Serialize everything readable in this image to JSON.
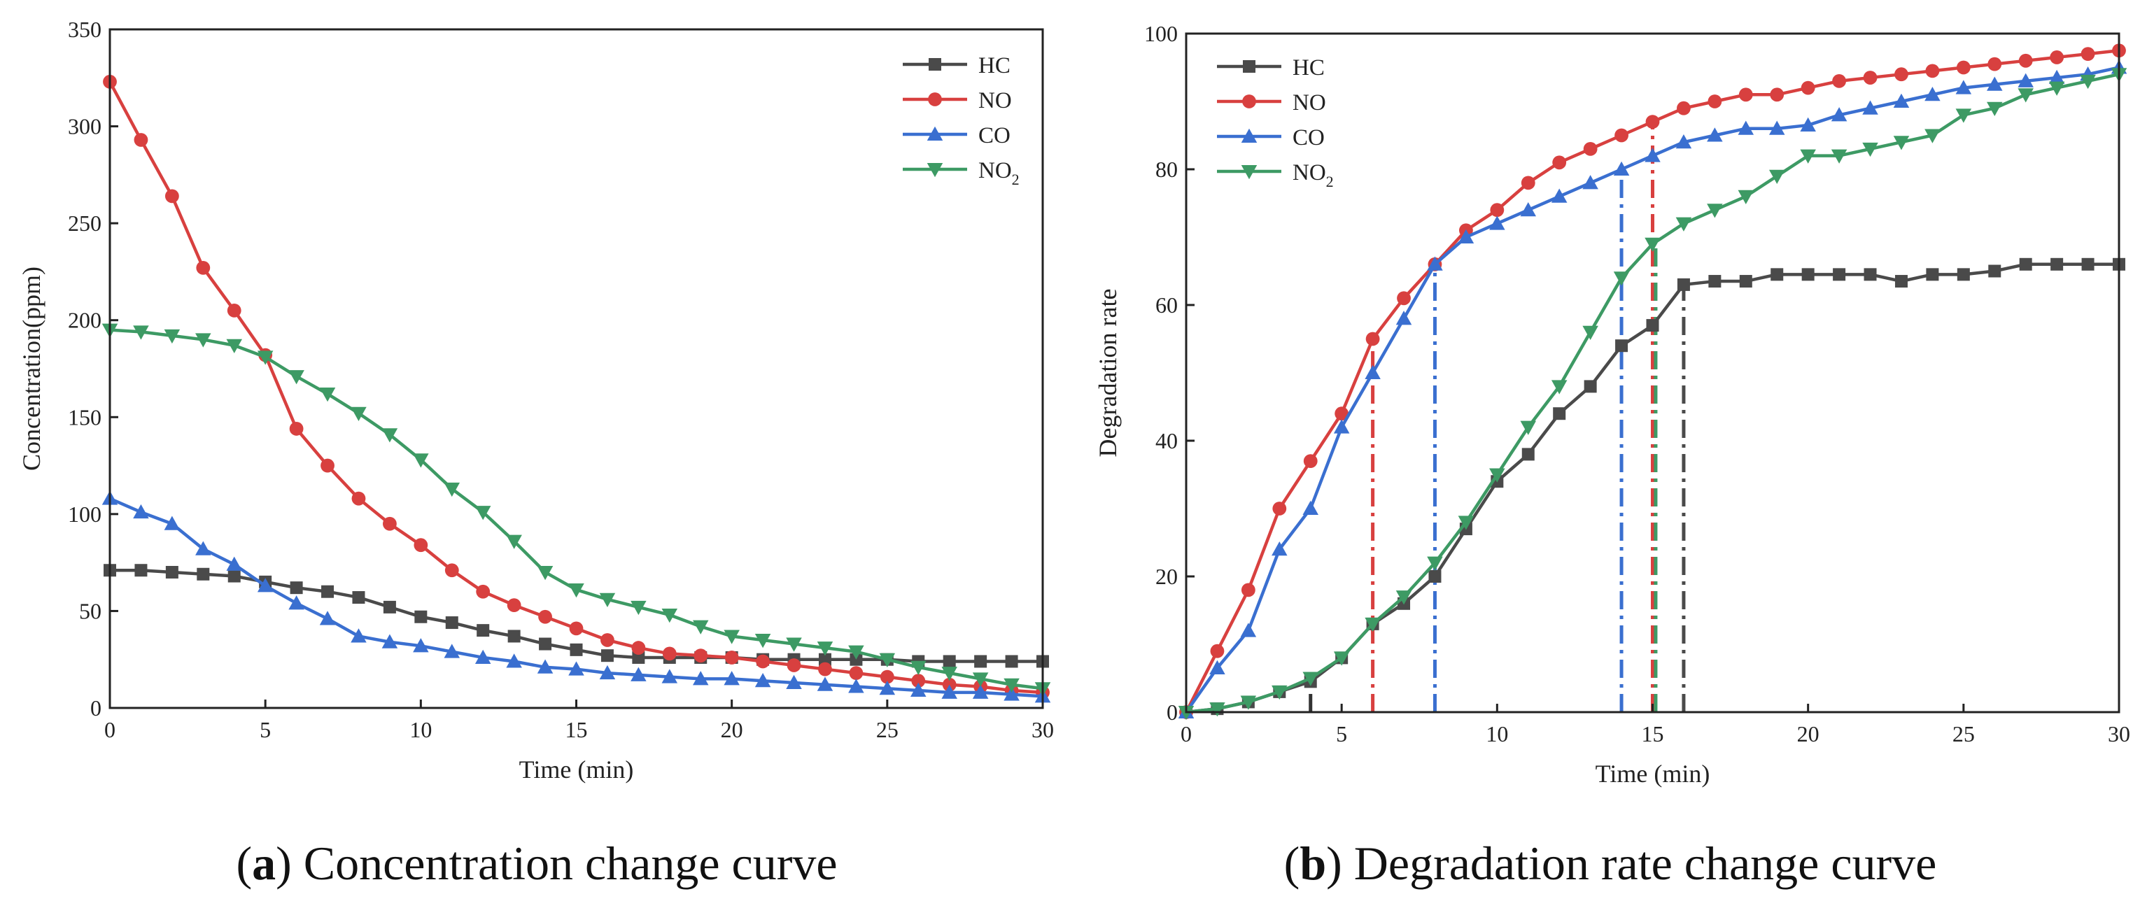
{
  "chart_data": [
    {
      "type": "line",
      "panel_letter": "a",
      "caption": "Concentration change curve",
      "xlabel": "Time (min)",
      "ylabel": "Concentration(ppm)",
      "xlim": [
        0,
        30
      ],
      "ylim": [
        0,
        350
      ],
      "xticks": [
        0,
        5,
        10,
        15,
        20,
        25,
        30
      ],
      "yticks": [
        0,
        50,
        100,
        150,
        200,
        250,
        300,
        350
      ],
      "legend_position": "top-right",
      "x": [
        0,
        1,
        2,
        3,
        4,
        5,
        6,
        7,
        8,
        9,
        10,
        11,
        12,
        13,
        14,
        15,
        16,
        17,
        18,
        19,
        20,
        21,
        22,
        23,
        24,
        25,
        26,
        27,
        28,
        29,
        30
      ],
      "series": [
        {
          "name": "HC",
          "sub": "",
          "color": "#4a4a4a",
          "marker": "square",
          "values": [
            71,
            71,
            70,
            69,
            68,
            65,
            62,
            60,
            57,
            52,
            47,
            44,
            40,
            37,
            33,
            30,
            27,
            26,
            26,
            26,
            26,
            25,
            25,
            25,
            25,
            25,
            24,
            24,
            24,
            24,
            24
          ]
        },
        {
          "name": "NO",
          "sub": "",
          "color": "#d8403f",
          "marker": "circle",
          "values": [
            323,
            293,
            264,
            227,
            205,
            182,
            144,
            125,
            108,
            95,
            84,
            71,
            60,
            53,
            47,
            41,
            35,
            31,
            28,
            27,
            26,
            24,
            22,
            20,
            18,
            16,
            14,
            12,
            11,
            9,
            8
          ]
        },
        {
          "name": "CO",
          "sub": "",
          "color": "#3a6fd0",
          "marker": "triangle-up",
          "values": [
            108,
            101,
            95,
            82,
            74,
            63,
            54,
            46,
            37,
            34,
            32,
            29,
            26,
            24,
            21,
            20,
            18,
            17,
            16,
            15,
            15,
            14,
            13,
            12,
            11,
            10,
            9,
            8,
            8,
            7,
            6
          ]
        },
        {
          "name": "NO",
          "sub": "2",
          "color": "#3d9a64",
          "marker": "triangle-down",
          "values": [
            195,
            194,
            192,
            190,
            187,
            181,
            171,
            162,
            152,
            141,
            128,
            113,
            101,
            86,
            70,
            61,
            56,
            52,
            48,
            42,
            37,
            35,
            33,
            31,
            29,
            25,
            21,
            18,
            15,
            12,
            10
          ]
        }
      ]
    },
    {
      "type": "line",
      "panel_letter": "b",
      "caption": "Degradation rate change curve",
      "xlabel": "Time (min)",
      "ylabel": "Degradation rate",
      "xlim": [
        0,
        30
      ],
      "ylim": [
        0,
        100
      ],
      "xticks": [
        0,
        5,
        10,
        15,
        20,
        25,
        30
      ],
      "yticks": [
        0,
        20,
        40,
        60,
        80,
        100
      ],
      "legend_position": "top-left",
      "x": [
        0,
        1,
        2,
        3,
        4,
        5,
        6,
        7,
        8,
        9,
        10,
        11,
        12,
        13,
        14,
        15,
        16,
        17,
        18,
        19,
        20,
        21,
        22,
        23,
        24,
        25,
        26,
        27,
        28,
        29,
        30
      ],
      "series": [
        {
          "name": "HC",
          "sub": "",
          "color": "#4a4a4a",
          "marker": "square",
          "values": [
            0,
            0.5,
            1.5,
            3,
            4.5,
            8,
            13,
            16,
            20,
            27,
            34,
            38,
            44,
            48,
            54,
            57,
            63,
            63.5,
            63.5,
            64.5,
            64.5,
            64.5,
            64.5,
            63.5,
            64.5,
            64.5,
            65,
            66,
            66,
            66,
            66
          ]
        },
        {
          "name": "NO",
          "sub": "",
          "color": "#d8403f",
          "marker": "circle",
          "values": [
            0,
            9,
            18,
            30,
            37,
            44,
            55,
            61,
            66,
            71,
            74,
            78,
            81,
            83,
            85,
            87,
            89,
            90,
            91,
            91,
            92,
            93,
            93.5,
            94,
            94.5,
            95,
            95.5,
            96,
            96.5,
            97,
            97.5
          ]
        },
        {
          "name": "CO",
          "sub": "",
          "color": "#3a6fd0",
          "marker": "triangle-up",
          "values": [
            0,
            6.5,
            12,
            24,
            30,
            42,
            50,
            58,
            66,
            70,
            72,
            74,
            76,
            78,
            80,
            82,
            84,
            85,
            86,
            86,
            86.5,
            88,
            89,
            90,
            91,
            92,
            92.5,
            93,
            93.5,
            94,
            95
          ]
        },
        {
          "name": "NO",
          "sub": "2",
          "color": "#3d9a64",
          "marker": "triangle-down",
          "values": [
            0,
            0.5,
            1.5,
            3,
            5,
            8,
            13,
            17,
            22,
            28,
            35,
            42,
            48,
            56,
            64,
            69,
            72,
            74,
            76,
            79,
            82,
            82,
            83,
            84,
            85,
            88,
            89,
            91,
            92,
            93,
            94
          ]
        }
      ],
      "reference_lines": [
        {
          "x": 4,
          "y": 4.5,
          "color": "#333333"
        },
        {
          "x": 6,
          "y": 55,
          "color": "#d8403f"
        },
        {
          "x": 8,
          "y": 66,
          "color": "#3a6fd0"
        },
        {
          "x": 14,
          "y": 80,
          "color": "#3a6fd0"
        },
        {
          "x": 15,
          "y": 87,
          "color": "#d8403f"
        },
        {
          "x": 15.1,
          "y": 69,
          "color": "#3d9a64"
        },
        {
          "x": 16,
          "y": 63,
          "color": "#4a4a4a"
        }
      ]
    }
  ]
}
